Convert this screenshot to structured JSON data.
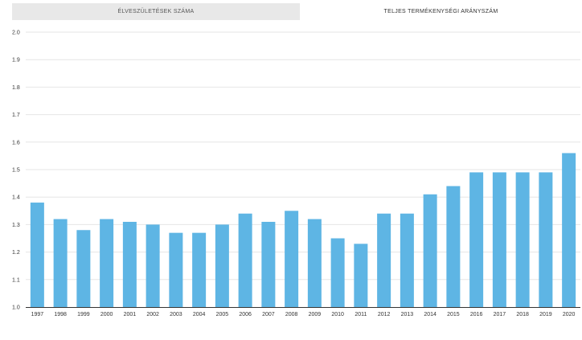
{
  "tabs": [
    {
      "label": "ÉLVESZÜLETÉSEK SZÁMA",
      "active": false
    },
    {
      "label": "TELJES TERMÉKENYSÉGI ARÁNYSZÁM",
      "active": true
    }
  ],
  "colors": {
    "bar": "#5eb5e4",
    "tab_inactive_bg": "#e8e8e8",
    "grid": "#e6e6e6"
  },
  "chart_data": {
    "type": "bar",
    "title": "",
    "xlabel": "",
    "ylabel": "",
    "categories": [
      "1997",
      "1998",
      "1999",
      "2000",
      "2001",
      "2002",
      "2003",
      "2004",
      "2005",
      "2006",
      "2007",
      "2008",
      "2009",
      "2010",
      "2011",
      "2012",
      "2013",
      "2014",
      "2015",
      "2016",
      "2017",
      "2018",
      "2019",
      "2020"
    ],
    "values": [
      1.38,
      1.32,
      1.28,
      1.32,
      1.31,
      1.3,
      1.27,
      1.27,
      1.3,
      1.34,
      1.31,
      1.35,
      1.32,
      1.25,
      1.23,
      1.34,
      1.34,
      1.41,
      1.44,
      1.49,
      1.49,
      1.49,
      1.49,
      1.56
    ],
    "ylim": [
      1.0,
      2.0
    ],
    "yticks": [
      "1.0",
      "1.1",
      "1.2",
      "1.3",
      "1.4",
      "1.5",
      "1.6",
      "1.7",
      "1.8",
      "1.9",
      "2.0"
    ],
    "grid": true,
    "legend": "none"
  }
}
